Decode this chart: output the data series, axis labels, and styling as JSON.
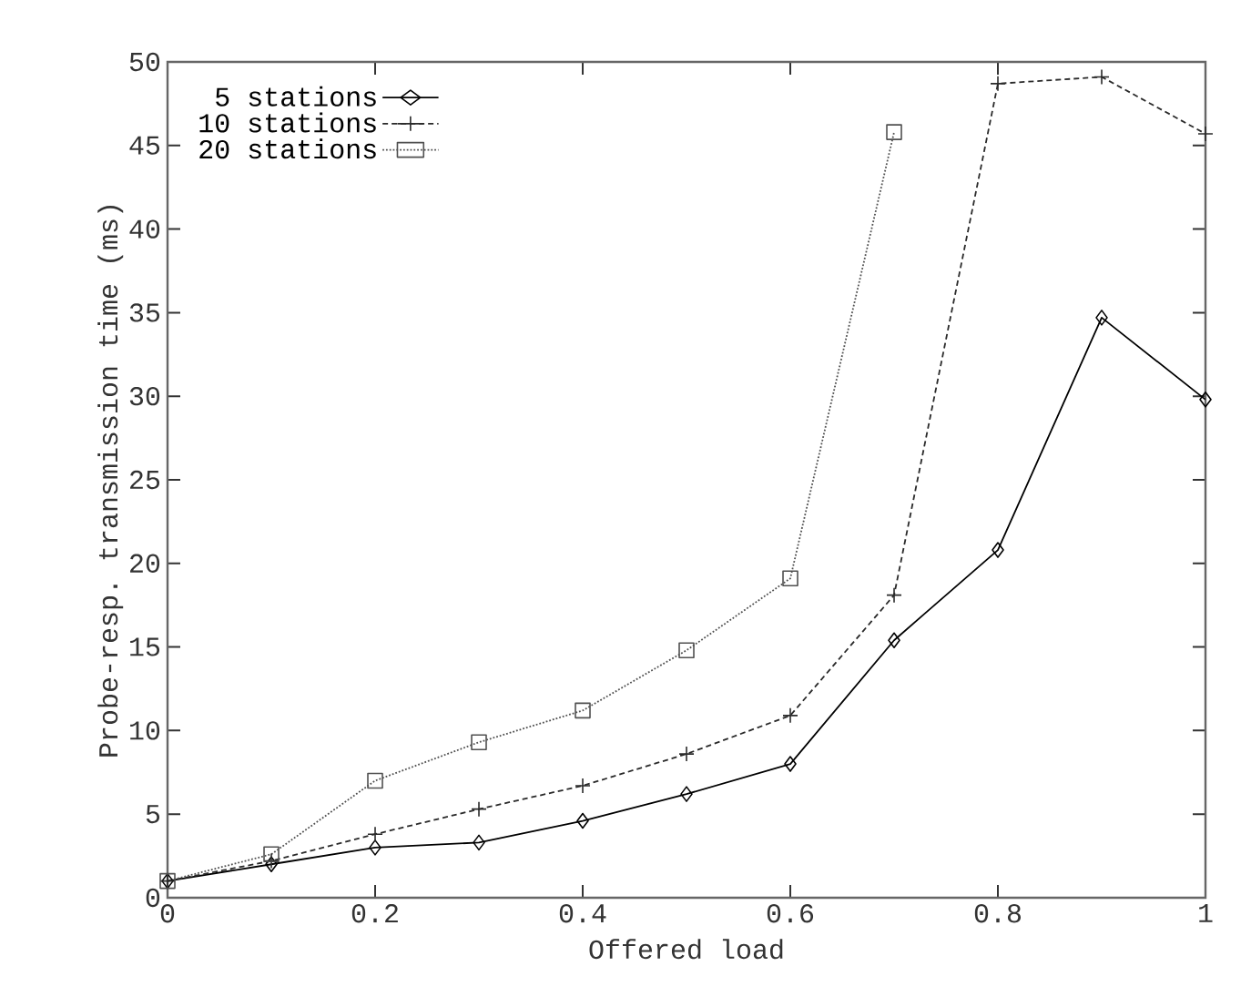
{
  "chart_data": {
    "type": "line",
    "xlabel": "Offered load",
    "ylabel": "Probe-resp. transmission time (ms)",
    "x": [
      0,
      0.1,
      0.2,
      0.3,
      0.4,
      0.5,
      0.6,
      0.7,
      0.8,
      0.9,
      1.0
    ],
    "series": [
      {
        "name": "5 stations",
        "color": "#000000",
        "marker": "diamond",
        "line_style": "solid",
        "values": [
          1.0,
          2.0,
          3.0,
          3.3,
          4.6,
          6.2,
          8.0,
          15.4,
          20.8,
          34.7,
          29.8
        ]
      },
      {
        "name": "10 stations",
        "color": "#2a2a2a",
        "marker": "cross",
        "line_style": "dashed",
        "values": [
          1.0,
          2.2,
          3.8,
          5.3,
          6.7,
          8.6,
          10.9,
          18.1,
          48.7,
          49.1,
          45.7
        ]
      },
      {
        "name": "20 stations",
        "color": "#505050",
        "marker": "square",
        "line_style": "dotted",
        "values": [
          1.0,
          2.6,
          7.0,
          9.3,
          11.2,
          14.8,
          19.1,
          45.8,
          null,
          null,
          null
        ]
      }
    ],
    "xlim": [
      0,
      1
    ],
    "ylim": [
      0,
      50
    ],
    "xticks": [
      0,
      0.2,
      0.4,
      0.6,
      0.8,
      1
    ],
    "yticks": [
      0,
      5,
      10,
      15,
      20,
      25,
      30,
      35,
      40,
      45,
      50
    ],
    "legend": "top left",
    "grid": false
  }
}
